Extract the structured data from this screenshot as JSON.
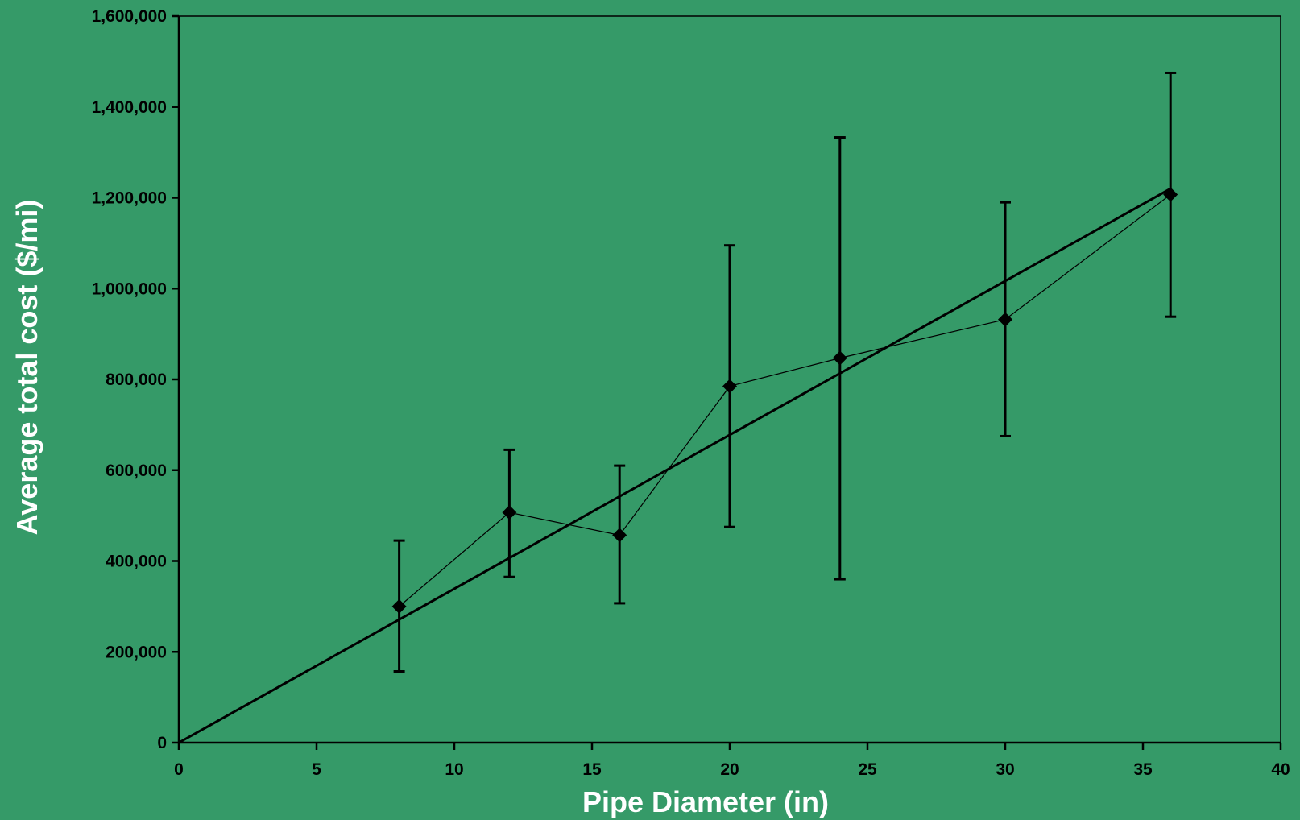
{
  "chart_data": {
    "type": "scatter",
    "title": "",
    "xlabel": "Pipe Diameter (in)",
    "ylabel": "Average total cost ($/mi)",
    "xlim": [
      0,
      40
    ],
    "ylim": [
      0,
      1600000
    ],
    "x_ticks": [
      0,
      5,
      10,
      15,
      20,
      25,
      30,
      35,
      40
    ],
    "x_tick_labels": [
      "0",
      "5",
      "10",
      "15",
      "20",
      "25",
      "30",
      "35",
      "40"
    ],
    "y_ticks": [
      0,
      200000,
      400000,
      600000,
      800000,
      1000000,
      1200000,
      1400000,
      1600000
    ],
    "y_tick_labels": [
      "0",
      "200,000",
      "400,000",
      "600,000",
      "800,000",
      "1,000,000",
      "1,200,000",
      "1,400,000",
      "1,600,000"
    ],
    "grid": false,
    "legend": "none",
    "series": [
      {
        "marker": "diamond",
        "connected": true,
        "color": "#000000",
        "points": [
          {
            "x": 8,
            "y": 300000,
            "err_low": 157000,
            "err_high": 445000
          },
          {
            "x": 12,
            "y": 507000,
            "err_low": 365000,
            "err_high": 645000
          },
          {
            "x": 16,
            "y": 457000,
            "err_low": 307000,
            "err_high": 610000
          },
          {
            "x": 20,
            "y": 785000,
            "err_low": 475000,
            "err_high": 1095000
          },
          {
            "x": 24,
            "y": 847000,
            "err_low": 360000,
            "err_high": 1333000
          },
          {
            "x": 30,
            "y": 932000,
            "err_low": 675000,
            "err_high": 1190000
          },
          {
            "x": 36,
            "y": 1207000,
            "err_low": 938000,
            "err_high": 1475000
          }
        ]
      }
    ],
    "trendline": {
      "type": "linear",
      "color": "#000000",
      "points": [
        {
          "x": 0,
          "y": 0
        },
        {
          "x": 36,
          "y": 1220000
        }
      ]
    },
    "colors": {
      "background": "#359a68",
      "axis": "#000000",
      "axis_title": "#ffffff",
      "tick_label": "#000000"
    }
  }
}
